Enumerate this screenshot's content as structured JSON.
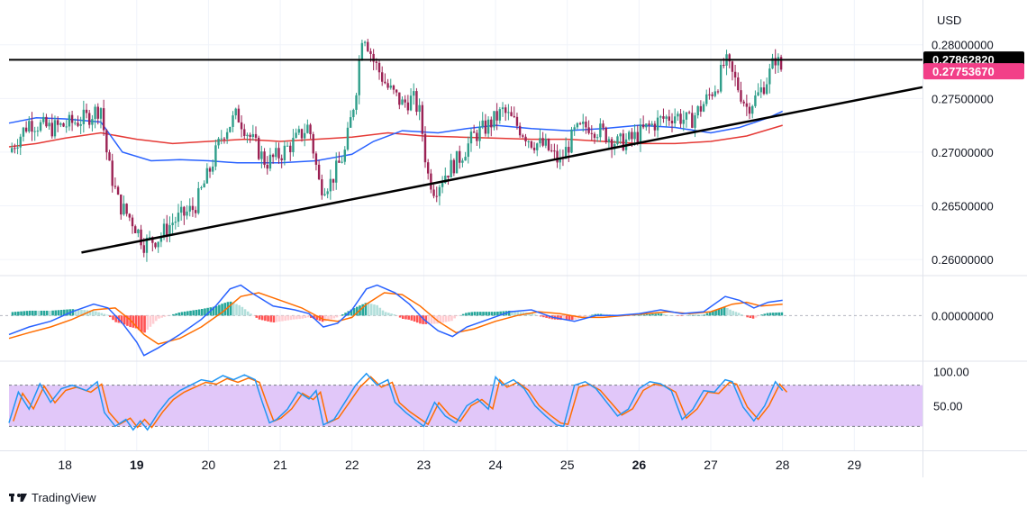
{
  "chart_data": {
    "type": "candlestick",
    "currency": "USD",
    "branding": "TradingView",
    "colors": {
      "up": "#2f9e8a",
      "down": "#9c2254",
      "sma_fast": "#2962ff",
      "sma_slow": "#e53935",
      "resistance": "#000000",
      "last_price_bg": "#f23f88",
      "ref_price_bg": "#000000",
      "macd_line": "#2962ff",
      "signal_line": "#ff6d00",
      "stoch_k": "#2196f3",
      "stoch_d": "#ff6d00",
      "stoch_band": "#e1c7f9"
    },
    "price_axis": {
      "ylim": [
        0.2585,
        0.2835
      ],
      "ticks": [
        "0.28000000",
        "0.27500000",
        "0.27000000",
        "0.26500000",
        "0.26000000"
      ]
    },
    "price_labels": {
      "reference": "0.27862820",
      "last": "0.27753670"
    },
    "x_axis": {
      "xlim": [
        17.22,
        29.95
      ],
      "ticks": [
        {
          "label": "18",
          "x": 18,
          "bold": false
        },
        {
          "label": "19",
          "x": 19,
          "bold": true
        },
        {
          "label": "20",
          "x": 20,
          "bold": false
        },
        {
          "label": "21",
          "x": 21,
          "bold": false
        },
        {
          "label": "22",
          "x": 22,
          "bold": false
        },
        {
          "label": "23",
          "x": 23,
          "bold": false
        },
        {
          "label": "24",
          "x": 24,
          "bold": false
        },
        {
          "label": "25",
          "x": 25,
          "bold": false
        },
        {
          "label": "26",
          "x": 26,
          "bold": true
        },
        {
          "label": "27",
          "x": 27,
          "bold": false
        },
        {
          "label": "28",
          "x": 28,
          "bold": false
        },
        {
          "label": "29",
          "x": 29,
          "bold": false
        }
      ]
    },
    "resistance_level": 0.2786,
    "trendline": {
      "x1": 18.23,
      "y1": 0.26065,
      "x2": 29.95,
      "y2": 0.27605
    },
    "anchors": [
      [
        17.22,
        0.27
      ],
      [
        17.5,
        0.2728
      ],
      [
        17.8,
        0.2722
      ],
      [
        18.0,
        0.2725
      ],
      [
        18.3,
        0.2732
      ],
      [
        18.5,
        0.2742
      ],
      [
        18.6,
        0.269
      ],
      [
        18.75,
        0.2652
      ],
      [
        18.95,
        0.2635
      ],
      [
        19.1,
        0.2615
      ],
      [
        19.3,
        0.262
      ],
      [
        19.5,
        0.2635
      ],
      [
        19.8,
        0.2648
      ],
      [
        20.0,
        0.268
      ],
      [
        20.2,
        0.2718
      ],
      [
        20.4,
        0.2735
      ],
      [
        20.6,
        0.2712
      ],
      [
        20.8,
        0.269
      ],
      [
        21.0,
        0.2698
      ],
      [
        21.2,
        0.271
      ],
      [
        21.4,
        0.2725
      ],
      [
        21.55,
        0.2668
      ],
      [
        21.7,
        0.2672
      ],
      [
        21.9,
        0.27
      ],
      [
        22.05,
        0.2755
      ],
      [
        22.15,
        0.2815
      ],
      [
        22.3,
        0.2785
      ],
      [
        22.5,
        0.276
      ],
      [
        22.7,
        0.2745
      ],
      [
        22.85,
        0.275
      ],
      [
        22.95,
        0.2735
      ],
      [
        23.05,
        0.268
      ],
      [
        23.15,
        0.2665
      ],
      [
        23.3,
        0.268
      ],
      [
        23.5,
        0.2695
      ],
      [
        23.7,
        0.2715
      ],
      [
        23.9,
        0.2725
      ],
      [
        24.1,
        0.2738
      ],
      [
        24.3,
        0.2725
      ],
      [
        24.5,
        0.271
      ],
      [
        24.7,
        0.2705
      ],
      [
        24.9,
        0.269
      ],
      [
        25.1,
        0.2718
      ],
      [
        25.3,
        0.2725
      ],
      [
        25.5,
        0.2718
      ],
      [
        25.7,
        0.2708
      ],
      [
        25.9,
        0.2712
      ],
      [
        26.1,
        0.2722
      ],
      [
        26.3,
        0.273
      ],
      [
        26.5,
        0.2735
      ],
      [
        26.7,
        0.2728
      ],
      [
        26.9,
        0.2745
      ],
      [
        27.1,
        0.2765
      ],
      [
        27.2,
        0.2785
      ],
      [
        27.35,
        0.2765
      ],
      [
        27.5,
        0.2742
      ],
      [
        27.65,
        0.2752
      ],
      [
        27.8,
        0.277
      ],
      [
        27.9,
        0.2788
      ],
      [
        28.0,
        0.2775
      ]
    ],
    "sma_fast": [
      [
        17.22,
        0.2727
      ],
      [
        17.6,
        0.2732
      ],
      [
        18.0,
        0.2731
      ],
      [
        18.5,
        0.2728
      ],
      [
        18.8,
        0.27
      ],
      [
        19.2,
        0.2692
      ],
      [
        19.6,
        0.2693
      ],
      [
        20.0,
        0.2692
      ],
      [
        20.4,
        0.269
      ],
      [
        21.0,
        0.269
      ],
      [
        21.5,
        0.2692
      ],
      [
        22.0,
        0.2698
      ],
      [
        22.3,
        0.271
      ],
      [
        22.7,
        0.272
      ],
      [
        23.2,
        0.2718
      ],
      [
        23.6,
        0.2722
      ],
      [
        24.0,
        0.2725
      ],
      [
        24.5,
        0.2722
      ],
      [
        25.0,
        0.272
      ],
      [
        25.5,
        0.2722
      ],
      [
        26.0,
        0.2725
      ],
      [
        26.5,
        0.2723
      ],
      [
        27.0,
        0.2718
      ],
      [
        27.4,
        0.2723
      ],
      [
        27.8,
        0.2732
      ],
      [
        28.0,
        0.2738
      ]
    ],
    "sma_slow": [
      [
        17.22,
        0.2705
      ],
      [
        17.6,
        0.2708
      ],
      [
        18.0,
        0.2713
      ],
      [
        18.5,
        0.2718
      ],
      [
        19.0,
        0.2712
      ],
      [
        19.5,
        0.2708
      ],
      [
        20.0,
        0.271
      ],
      [
        20.5,
        0.2712
      ],
      [
        21.0,
        0.271
      ],
      [
        21.5,
        0.2712
      ],
      [
        22.0,
        0.2714
      ],
      [
        22.5,
        0.2718
      ],
      [
        23.0,
        0.2715
      ],
      [
        23.5,
        0.2714
      ],
      [
        24.0,
        0.2713
      ],
      [
        24.5,
        0.2712
      ],
      [
        25.0,
        0.2712
      ],
      [
        25.5,
        0.271
      ],
      [
        26.0,
        0.2708
      ],
      [
        26.5,
        0.2708
      ],
      [
        27.0,
        0.271
      ],
      [
        27.5,
        0.2715
      ],
      [
        28.0,
        0.2725
      ]
    ],
    "macd": {
      "zero_label": "0.00000000",
      "ylim": [
        -0.0024,
        0.0021
      ],
      "line": [
        [
          17.22,
          -0.001
        ],
        [
          17.5,
          -0.0006
        ],
        [
          17.8,
          -0.0003
        ],
        [
          18.1,
          0.0002
        ],
        [
          18.4,
          0.0006
        ],
        [
          18.6,
          0.0004
        ],
        [
          18.8,
          -0.0004
        ],
        [
          19.0,
          -0.0014
        ],
        [
          19.1,
          -0.0021
        ],
        [
          19.3,
          -0.0017
        ],
        [
          19.6,
          -0.001
        ],
        [
          19.9,
          -0.0002
        ],
        [
          20.1,
          0.0005
        ],
        [
          20.3,
          0.0014
        ],
        [
          20.45,
          0.0016
        ],
        [
          20.6,
          0.0012
        ],
        [
          20.9,
          0.0005
        ],
        [
          21.2,
          0.0003
        ],
        [
          21.4,
          0.0001
        ],
        [
          21.6,
          -0.0006
        ],
        [
          21.8,
          -0.0004
        ],
        [
          22.0,
          0.0003
        ],
        [
          22.2,
          0.0014
        ],
        [
          22.35,
          0.0016
        ],
        [
          22.6,
          0.0012
        ],
        [
          22.8,
          0.0006
        ],
        [
          23.0,
          -0.0002
        ],
        [
          23.2,
          -0.0008
        ],
        [
          23.4,
          -0.0011
        ],
        [
          23.6,
          -0.0006
        ],
        [
          23.9,
          -0.0002
        ],
        [
          24.2,
          0.0002
        ],
        [
          24.5,
          0.0003
        ],
        [
          24.8,
          -0.0001
        ],
        [
          25.1,
          -0.0003
        ],
        [
          25.4,
          0.0
        ],
        [
          25.7,
          0.0
        ],
        [
          26.0,
          0.0001
        ],
        [
          26.3,
          0.0003
        ],
        [
          26.6,
          0.0001
        ],
        [
          26.9,
          0.0002
        ],
        [
          27.2,
          0.001
        ],
        [
          27.4,
          0.0008
        ],
        [
          27.6,
          0.0004
        ],
        [
          27.8,
          0.0007
        ],
        [
          28.0,
          0.0008
        ]
      ],
      "signal": [
        [
          17.22,
          -0.0012
        ],
        [
          17.5,
          -0.0009
        ],
        [
          17.8,
          -0.0006
        ],
        [
          18.1,
          -0.0002
        ],
        [
          18.4,
          0.0003
        ],
        [
          18.7,
          0.0004
        ],
        [
          18.9,
          -0.0002
        ],
        [
          19.1,
          -0.001
        ],
        [
          19.3,
          -0.0015
        ],
        [
          19.6,
          -0.0012
        ],
        [
          19.9,
          -0.0006
        ],
        [
          20.2,
          0.0002
        ],
        [
          20.45,
          0.001
        ],
        [
          20.7,
          0.0012
        ],
        [
          21.0,
          0.0008
        ],
        [
          21.3,
          0.0004
        ],
        [
          21.6,
          -0.0002
        ],
        [
          21.8,
          -0.0003
        ],
        [
          22.0,
          -0.0001
        ],
        [
          22.2,
          0.0006
        ],
        [
          22.45,
          0.0012
        ],
        [
          22.7,
          0.0011
        ],
        [
          22.95,
          0.0005
        ],
        [
          23.2,
          -0.0003
        ],
        [
          23.45,
          -0.0009
        ],
        [
          23.7,
          -0.0007
        ],
        [
          24.0,
          -0.0003
        ],
        [
          24.3,
          0.0
        ],
        [
          24.6,
          0.0002
        ],
        [
          24.9,
          0.0001
        ],
        [
          25.2,
          -0.0001
        ],
        [
          25.5,
          -0.0001
        ],
        [
          25.8,
          0.0
        ],
        [
          26.1,
          0.0001
        ],
        [
          26.4,
          0.0002
        ],
        [
          26.7,
          0.0001
        ],
        [
          27.0,
          0.0002
        ],
        [
          27.3,
          0.0006
        ],
        [
          27.5,
          0.0007
        ],
        [
          27.7,
          0.0005
        ],
        [
          28.0,
          0.0006
        ]
      ]
    },
    "stochastic": {
      "labels": [
        "100.00",
        "50.00"
      ],
      "ylim": [
        -15,
        115
      ],
      "band": [
        20,
        80
      ],
      "anchors": [
        [
          17.22,
          25
        ],
        [
          17.35,
          70
        ],
        [
          17.5,
          45
        ],
        [
          17.65,
          82
        ],
        [
          17.8,
          55
        ],
        [
          17.95,
          75
        ],
        [
          18.1,
          80
        ],
        [
          18.3,
          72
        ],
        [
          18.45,
          85
        ],
        [
          18.55,
          40
        ],
        [
          18.7,
          20
        ],
        [
          18.85,
          30
        ],
        [
          18.95,
          15
        ],
        [
          19.05,
          28
        ],
        [
          19.15,
          15
        ],
        [
          19.3,
          40
        ],
        [
          19.45,
          60
        ],
        [
          19.6,
          72
        ],
        [
          19.75,
          80
        ],
        [
          19.9,
          88
        ],
        [
          20.05,
          85
        ],
        [
          20.2,
          94
        ],
        [
          20.35,
          88
        ],
        [
          20.5,
          95
        ],
        [
          20.65,
          88
        ],
        [
          20.75,
          55
        ],
        [
          20.85,
          25
        ],
        [
          20.95,
          30
        ],
        [
          21.1,
          45
        ],
        [
          21.25,
          70
        ],
        [
          21.4,
          60
        ],
        [
          21.5,
          72
        ],
        [
          21.6,
          22
        ],
        [
          21.75,
          30
        ],
        [
          21.9,
          55
        ],
        [
          22.05,
          80
        ],
        [
          22.2,
          97
        ],
        [
          22.35,
          80
        ],
        [
          22.5,
          88
        ],
        [
          22.6,
          55
        ],
        [
          22.75,
          40
        ],
        [
          22.9,
          28
        ],
        [
          23.0,
          20
        ],
        [
          23.15,
          55
        ],
        [
          23.3,
          35
        ],
        [
          23.45,
          25
        ],
        [
          23.6,
          50
        ],
        [
          23.75,
          60
        ],
        [
          23.9,
          45
        ],
        [
          24.0,
          92
        ],
        [
          24.1,
          80
        ],
        [
          24.25,
          88
        ],
        [
          24.4,
          75
        ],
        [
          24.55,
          50
        ],
        [
          24.7,
          35
        ],
        [
          24.85,
          22
        ],
        [
          24.95,
          20
        ],
        [
          25.1,
          80
        ],
        [
          25.25,
          85
        ],
        [
          25.4,
          75
        ],
        [
          25.55,
          55
        ],
        [
          25.7,
          35
        ],
        [
          25.85,
          45
        ],
        [
          26.0,
          75
        ],
        [
          26.15,
          85
        ],
        [
          26.3,
          82
        ],
        [
          26.45,
          72
        ],
        [
          26.6,
          30
        ],
        [
          26.75,
          45
        ],
        [
          26.9,
          72
        ],
        [
          27.05,
          70
        ],
        [
          27.2,
          88
        ],
        [
          27.3,
          85
        ],
        [
          27.45,
          48
        ],
        [
          27.6,
          28
        ],
        [
          27.75,
          50
        ],
        [
          27.9,
          85
        ],
        [
          28.0,
          72
        ]
      ]
    }
  }
}
